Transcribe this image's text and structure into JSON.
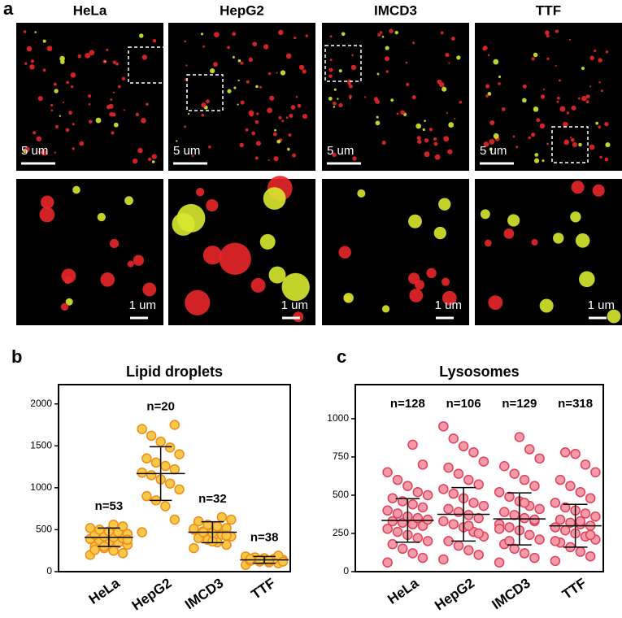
{
  "panel_a": {
    "label": "a",
    "columns": [
      {
        "name": "HeLa",
        "scale_top": "5 um",
        "scale_bottom": "1 um"
      },
      {
        "name": "HepG2",
        "scale_top": "5 um",
        "scale_bottom": "1 um"
      },
      {
        "name": "IMCD3",
        "scale_top": "5 um",
        "scale_bottom": "1 um"
      },
      {
        "name": "TTF",
        "scale_top": "5 um",
        "scale_bottom": "1 um"
      }
    ]
  },
  "chart_data": [
    {
      "type": "dot",
      "panel_label": "b",
      "title": "Lipid droplets",
      "categories": [
        "HeLa",
        "HepG2",
        "IMCD3",
        "TTF"
      ],
      "n_labels": [
        "n=53",
        "n=20",
        "n=32",
        "n=38"
      ],
      "points": [
        [
          200,
          220,
          250,
          280,
          300,
          320,
          340,
          350,
          370,
          390,
          400,
          410,
          420,
          440,
          450,
          470,
          480,
          500,
          520,
          540,
          560,
          300,
          260,
          380
        ],
        [
          470,
          620,
          780,
          850,
          900,
          980,
          1050,
          1100,
          1150,
          1180,
          1220,
          1260,
          1300,
          1350,
          1400,
          1480,
          1550,
          1620,
          1700,
          1750
        ],
        [
          280,
          320,
          350,
          380,
          400,
          420,
          440,
          460,
          480,
          500,
          520,
          540,
          560,
          600,
          620,
          650,
          360,
          470,
          510,
          430
        ],
        [
          80,
          100,
          110,
          120,
          130,
          140,
          150,
          160,
          170,
          180,
          190,
          130,
          140,
          150,
          120
        ]
      ],
      "mean": [
        410,
        1170,
        470,
        140
      ],
      "sd": [
        110,
        320,
        125,
        40
      ],
      "ylim": [
        0,
        2230
      ],
      "yticks": [
        0,
        500,
        1000,
        1500,
        2000
      ],
      "color": "#f7c948",
      "edge_color": "#f08c1a"
    },
    {
      "type": "dot",
      "panel_label": "c",
      "title": "Lysosomes",
      "categories": [
        "HeLa",
        "HepG2",
        "IMCD3",
        "TTF"
      ],
      "n_labels": [
        "n=128",
        "n=106",
        "n=129",
        "n=318"
      ],
      "points": [
        [
          60,
          90,
          120,
          150,
          180,
          200,
          220,
          240,
          260,
          280,
          300,
          310,
          320,
          330,
          340,
          350,
          360,
          380,
          400,
          420,
          440,
          460,
          480,
          500,
          520,
          560,
          600,
          650,
          700,
          830
        ],
        [
          80,
          110,
          140,
          170,
          200,
          230,
          260,
          290,
          310,
          330,
          350,
          370,
          390,
          410,
          430,
          450,
          480,
          510,
          540,
          570,
          600,
          640,
          680,
          720,
          780,
          820,
          870,
          950,
          250,
          300
        ],
        [
          60,
          90,
          120,
          150,
          180,
          210,
          240,
          270,
          290,
          310,
          330,
          350,
          370,
          390,
          410,
          430,
          460,
          490,
          520,
          560,
          600,
          640,
          690,
          740,
          800,
          880,
          200,
          280,
          340,
          450
        ],
        [
          70,
          100,
          130,
          160,
          190,
          210,
          230,
          250,
          270,
          290,
          300,
          310,
          320,
          340,
          360,
          380,
          400,
          420,
          450,
          480,
          520,
          560,
          600,
          650,
          700,
          770,
          780,
          200,
          240,
          330
        ]
      ],
      "mean": [
        335,
        375,
        345,
        300
      ],
      "sd": [
        142,
        175,
        170,
        140
      ],
      "ylim": [
        0,
        1223
      ],
      "yticks": [
        0,
        250,
        500,
        750,
        1000
      ],
      "color": "#f59aa8",
      "edge_color": "#e0405a"
    }
  ]
}
